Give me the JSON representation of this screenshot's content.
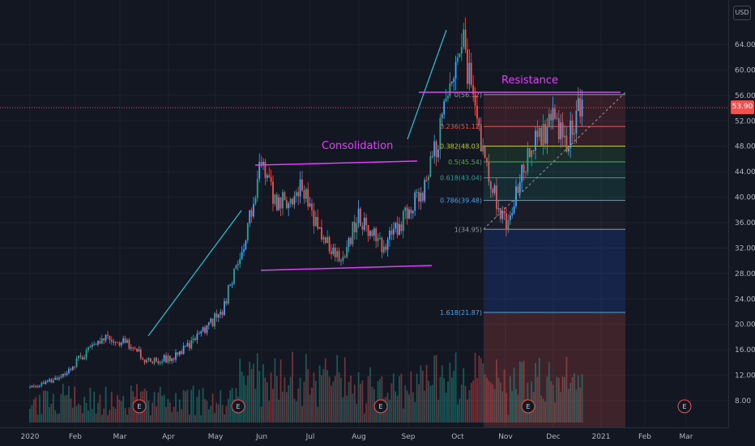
{
  "currency": "USD",
  "last_price": "53.90",
  "colors": {
    "background": "#131722",
    "up": "#26a69a",
    "down": "#ef5350",
    "up_blue": "#42a5f5",
    "annotation": "#e040fb",
    "trend": "#26c6da",
    "last_price": "#ef5350"
  },
  "chart_data": {
    "type": "candlestick",
    "y_ticks": [
      "64.00",
      "60.00",
      "56.00",
      "52.00",
      "48.00",
      "44.00",
      "40.00",
      "36.00",
      "32.00",
      "28.00",
      "24.00",
      "20.00",
      "16.00",
      "12.00",
      "8.00"
    ],
    "x_ticks": [
      "2020",
      "Feb",
      "Mar",
      "Apr",
      "May",
      "Jun",
      "Jul",
      "Aug",
      "Sep",
      "Oct",
      "Nov",
      "Dec",
      "2021",
      "Feb",
      "Mar"
    ],
    "ylim": [
      6,
      68
    ],
    "annotations": [
      {
        "text": "Consolidation",
        "kind": "label",
        "value": 48.5,
        "date": "2020-07-28"
      },
      {
        "text": "Resistance",
        "kind": "label",
        "value": 58.3,
        "date": "2020-11-10"
      }
    ],
    "fibonacci": [
      {
        "ratio": "0",
        "price": "56.12",
        "label": "0(56.12)"
      },
      {
        "ratio": "0.236",
        "price": "51.12",
        "label": "0.236(51.12)"
      },
      {
        "ratio": "0.382",
        "price": "48.03",
        "label": "0.382(48.03)"
      },
      {
        "ratio": "0.5",
        "price": "45.54",
        "label": "0.5(45.54)"
      },
      {
        "ratio": "0.618",
        "price": "43.04",
        "label": "0.618(43.04)"
      },
      {
        "ratio": "0.786",
        "price": "39.48",
        "label": "0.786(39.48)"
      },
      {
        "ratio": "1",
        "price": "34.95",
        "label": "1(34.95)"
      },
      {
        "ratio": "1.618",
        "price": "21.87",
        "label": "1.618(21.87)"
      }
    ],
    "earnings_markers": [
      "E",
      "E",
      "E",
      "E",
      "E"
    ],
    "price_path": [
      {
        "date": "2020-01-01",
        "close": 10.0
      },
      {
        "date": "2020-01-20",
        "close": 11.5
      },
      {
        "date": "2020-02-01",
        "close": 14.0
      },
      {
        "date": "2020-02-20",
        "close": 18.0
      },
      {
        "date": "2020-03-05",
        "close": 17.0
      },
      {
        "date": "2020-03-20",
        "close": 14.0
      },
      {
        "date": "2020-04-05",
        "close": 15.0
      },
      {
        "date": "2020-04-20",
        "close": 18.0
      },
      {
        "date": "2020-05-05",
        "close": 22.0
      },
      {
        "date": "2020-05-20",
        "close": 32.0
      },
      {
        "date": "2020-06-01",
        "close": 46.0
      },
      {
        "date": "2020-06-10",
        "close": 38.0
      },
      {
        "date": "2020-06-25",
        "close": 42.0
      },
      {
        "date": "2020-07-10",
        "close": 33.0
      },
      {
        "date": "2020-07-20",
        "close": 30.0
      },
      {
        "date": "2020-08-01",
        "close": 37.0
      },
      {
        "date": "2020-08-15",
        "close": 32.0
      },
      {
        "date": "2020-08-28",
        "close": 36.0
      },
      {
        "date": "2020-09-10",
        "close": 41.0
      },
      {
        "date": "2020-09-20",
        "close": 50.0
      },
      {
        "date": "2020-09-28",
        "close": 58.0
      },
      {
        "date": "2020-10-03",
        "close": 66.0
      },
      {
        "date": "2020-10-10",
        "close": 57.0
      },
      {
        "date": "2020-10-20",
        "close": 44.0
      },
      {
        "date": "2020-11-01",
        "close": 36.0
      },
      {
        "date": "2020-11-10",
        "close": 43.0
      },
      {
        "date": "2020-11-20",
        "close": 49.0
      },
      {
        "date": "2020-12-01",
        "close": 52.0
      },
      {
        "date": "2020-12-10",
        "close": 49.0
      },
      {
        "date": "2020-12-20",
        "close": 55.0
      }
    ]
  }
}
